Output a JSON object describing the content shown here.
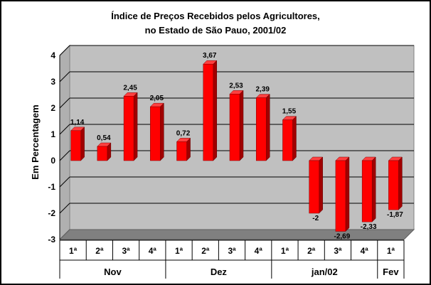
{
  "chart_data": {
    "type": "bar",
    "title_line1": "Índice de Preços Recebidos pelos Agricultores,",
    "title_line2": "no Estado de São Pauo, 2001/02",
    "ylabel": "Em Percentagem",
    "xlabel": "",
    "ylim": [
      -3,
      4
    ],
    "yticks": [
      "4",
      "3",
      "2",
      "1",
      "0",
      "-1",
      "-2",
      "-3"
    ],
    "grid": true,
    "legend": "none",
    "bar_color": "#ff0000",
    "categories": [
      "1ª",
      "2ª",
      "3ª",
      "4ª",
      "1ª",
      "2ª",
      "3ª",
      "4ª",
      "1ª",
      "2ª",
      "3ª",
      "4ª",
      "1ª"
    ],
    "values": [
      1.14,
      0.54,
      2.45,
      2.05,
      0.72,
      3.67,
      2.53,
      2.39,
      1.55,
      -2,
      -2.69,
      -2.33,
      -1.87
    ],
    "value_labels": [
      "1,14",
      "0,54",
      "2,45",
      "2,05",
      "0,72",
      "3,67",
      "2,53",
      "2,39",
      "1,55",
      "-2",
      "-2,69",
      "-2,33",
      "-1,87"
    ],
    "groups": [
      {
        "label": "Nov",
        "count": 4
      },
      {
        "label": "Dez",
        "count": 4
      },
      {
        "label": "jan/02",
        "count": 4
      },
      {
        "label": "Fev",
        "count": 1
      }
    ]
  }
}
